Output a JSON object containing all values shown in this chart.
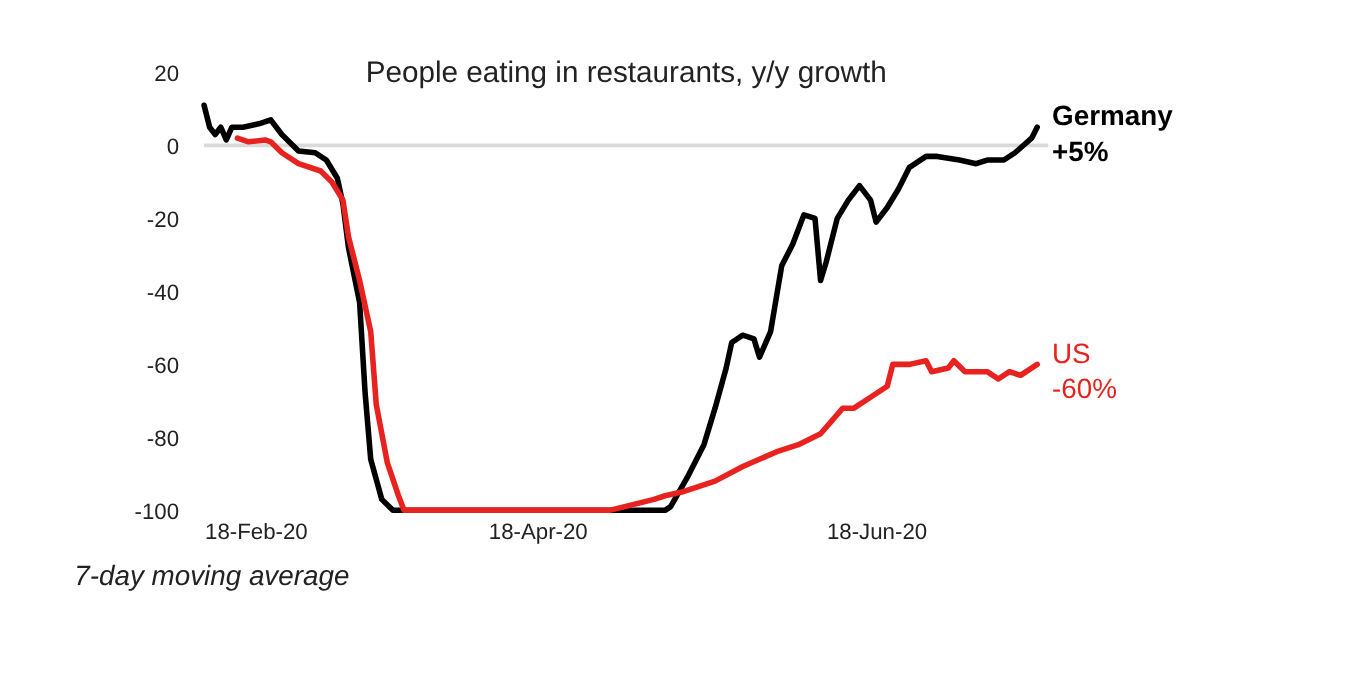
{
  "chart_data": {
    "type": "line",
    "title": "People eating in restaurants, y/y growth",
    "xlim": [
      "2020-02-18",
      "2020-07-19"
    ],
    "xticks": [
      {
        "value": "2020-02-18",
        "label": "18-Feb-20"
      },
      {
        "value": "2020-04-18",
        "label": "18-Apr-20"
      },
      {
        "value": "2020-06-18",
        "label": "18-Jun-20"
      }
    ],
    "ylim": [
      -100,
      20
    ],
    "yticks": [
      -100,
      -80,
      -60,
      -40,
      -20,
      0,
      20
    ],
    "marker": "none",
    "line_style": "solid",
    "ref_lines": [
      {
        "axis": "y",
        "value": 0,
        "color": "#d9d9d9"
      }
    ],
    "annotations": [
      "7-day moving average"
    ],
    "series": [
      {
        "name": "Germany",
        "color": "#000000",
        "x": [
          "2020-02-18",
          "2020-02-19",
          "2020-02-20",
          "2020-02-21",
          "2020-02-22",
          "2020-02-23",
          "2020-02-25",
          "2020-02-28",
          "2020-03-01",
          "2020-03-03",
          "2020-03-06",
          "2020-03-09",
          "2020-03-11",
          "2020-03-13",
          "2020-03-14",
          "2020-03-15",
          "2020-03-17",
          "2020-03-18",
          "2020-03-19",
          "2020-03-21",
          "2020-03-23",
          "2020-05-11",
          "2020-05-12",
          "2020-05-15",
          "2020-05-18",
          "2020-05-20",
          "2020-05-22",
          "2020-05-23",
          "2020-05-25",
          "2020-05-27",
          "2020-05-28",
          "2020-05-30",
          "2020-06-01",
          "2020-06-03",
          "2020-06-05",
          "2020-06-07",
          "2020-06-08",
          "2020-06-09",
          "2020-06-11",
          "2020-06-13",
          "2020-06-15",
          "2020-06-17",
          "2020-06-18",
          "2020-06-20",
          "2020-06-22",
          "2020-06-24",
          "2020-06-27",
          "2020-06-29",
          "2020-07-03",
          "2020-07-06",
          "2020-07-08",
          "2020-07-11",
          "2020-07-13",
          "2020-07-16",
          "2020-07-17"
        ],
        "values": [
          11,
          5,
          3,
          5,
          1.5,
          5,
          5,
          6,
          7,
          3,
          -1.5,
          -2,
          -4,
          -9,
          -16,
          -28,
          -43,
          -68,
          -86,
          -97,
          -100,
          -100,
          -99,
          -91,
          -82,
          -72,
          -61,
          -54,
          -52,
          -53,
          -58,
          -51,
          -33,
          -27,
          -19,
          -20,
          -37,
          -32,
          -20,
          -15,
          -11,
          -15,
          -21,
          -17,
          -12,
          -6,
          -3,
          -3,
          -4,
          -5,
          -4,
          -4,
          -2,
          2,
          5
        ],
        "value_labels": [
          null,
          null,
          null,
          null,
          null,
          null,
          null,
          null,
          null,
          null,
          null,
          null,
          null,
          null,
          null,
          null,
          null,
          null,
          null,
          null,
          null,
          null,
          null,
          null,
          null,
          null,
          null,
          null,
          null,
          null,
          null,
          null,
          null,
          null,
          null,
          null,
          null,
          null,
          null,
          null,
          null,
          null,
          null,
          null,
          null,
          null,
          null,
          null,
          null,
          null,
          null,
          null,
          null,
          null,
          "+5%"
        ]
      },
      {
        "name": "US",
        "color": "#e8231f",
        "x": [
          "2020-02-24",
          "2020-02-26",
          "2020-02-29",
          "2020-03-01",
          "2020-03-03",
          "2020-03-06",
          "2020-03-10",
          "2020-03-12",
          "2020-03-14",
          "2020-03-15",
          "2020-03-17",
          "2020-03-19",
          "2020-03-20",
          "2020-03-22",
          "2020-03-24",
          "2020-03-25",
          "2020-05-01",
          "2020-05-09",
          "2020-05-11",
          "2020-05-14",
          "2020-05-20",
          "2020-05-25",
          "2020-05-31",
          "2020-06-04",
          "2020-06-08",
          "2020-06-12",
          "2020-06-14",
          "2020-06-17",
          "2020-06-20",
          "2020-06-21",
          "2020-06-24",
          "2020-06-27",
          "2020-06-28",
          "2020-07-01",
          "2020-07-02",
          "2020-07-04",
          "2020-07-08",
          "2020-07-10",
          "2020-07-12",
          "2020-07-14",
          "2020-07-17"
        ],
        "values": [
          2,
          1,
          1.5,
          1,
          -2,
          -5,
          -7,
          -10,
          -15,
          -25,
          -37,
          -51,
          -71,
          -87,
          -96,
          -100,
          -100,
          -97,
          -96,
          -95,
          -92,
          -88,
          -84,
          -82,
          -79,
          -72,
          -72,
          -69,
          -66,
          -60,
          -60,
          -59,
          -62,
          -61,
          -59,
          -62,
          -62,
          -64,
          -62,
          -63,
          -60
        ],
        "value_labels": [
          null,
          null,
          null,
          null,
          null,
          null,
          null,
          null,
          null,
          null,
          null,
          null,
          null,
          null,
          null,
          null,
          null,
          null,
          null,
          null,
          null,
          null,
          null,
          null,
          null,
          null,
          null,
          null,
          null,
          null,
          null,
          null,
          null,
          null,
          null,
          null,
          null,
          null,
          null,
          null,
          "-60%"
        ]
      }
    ]
  }
}
